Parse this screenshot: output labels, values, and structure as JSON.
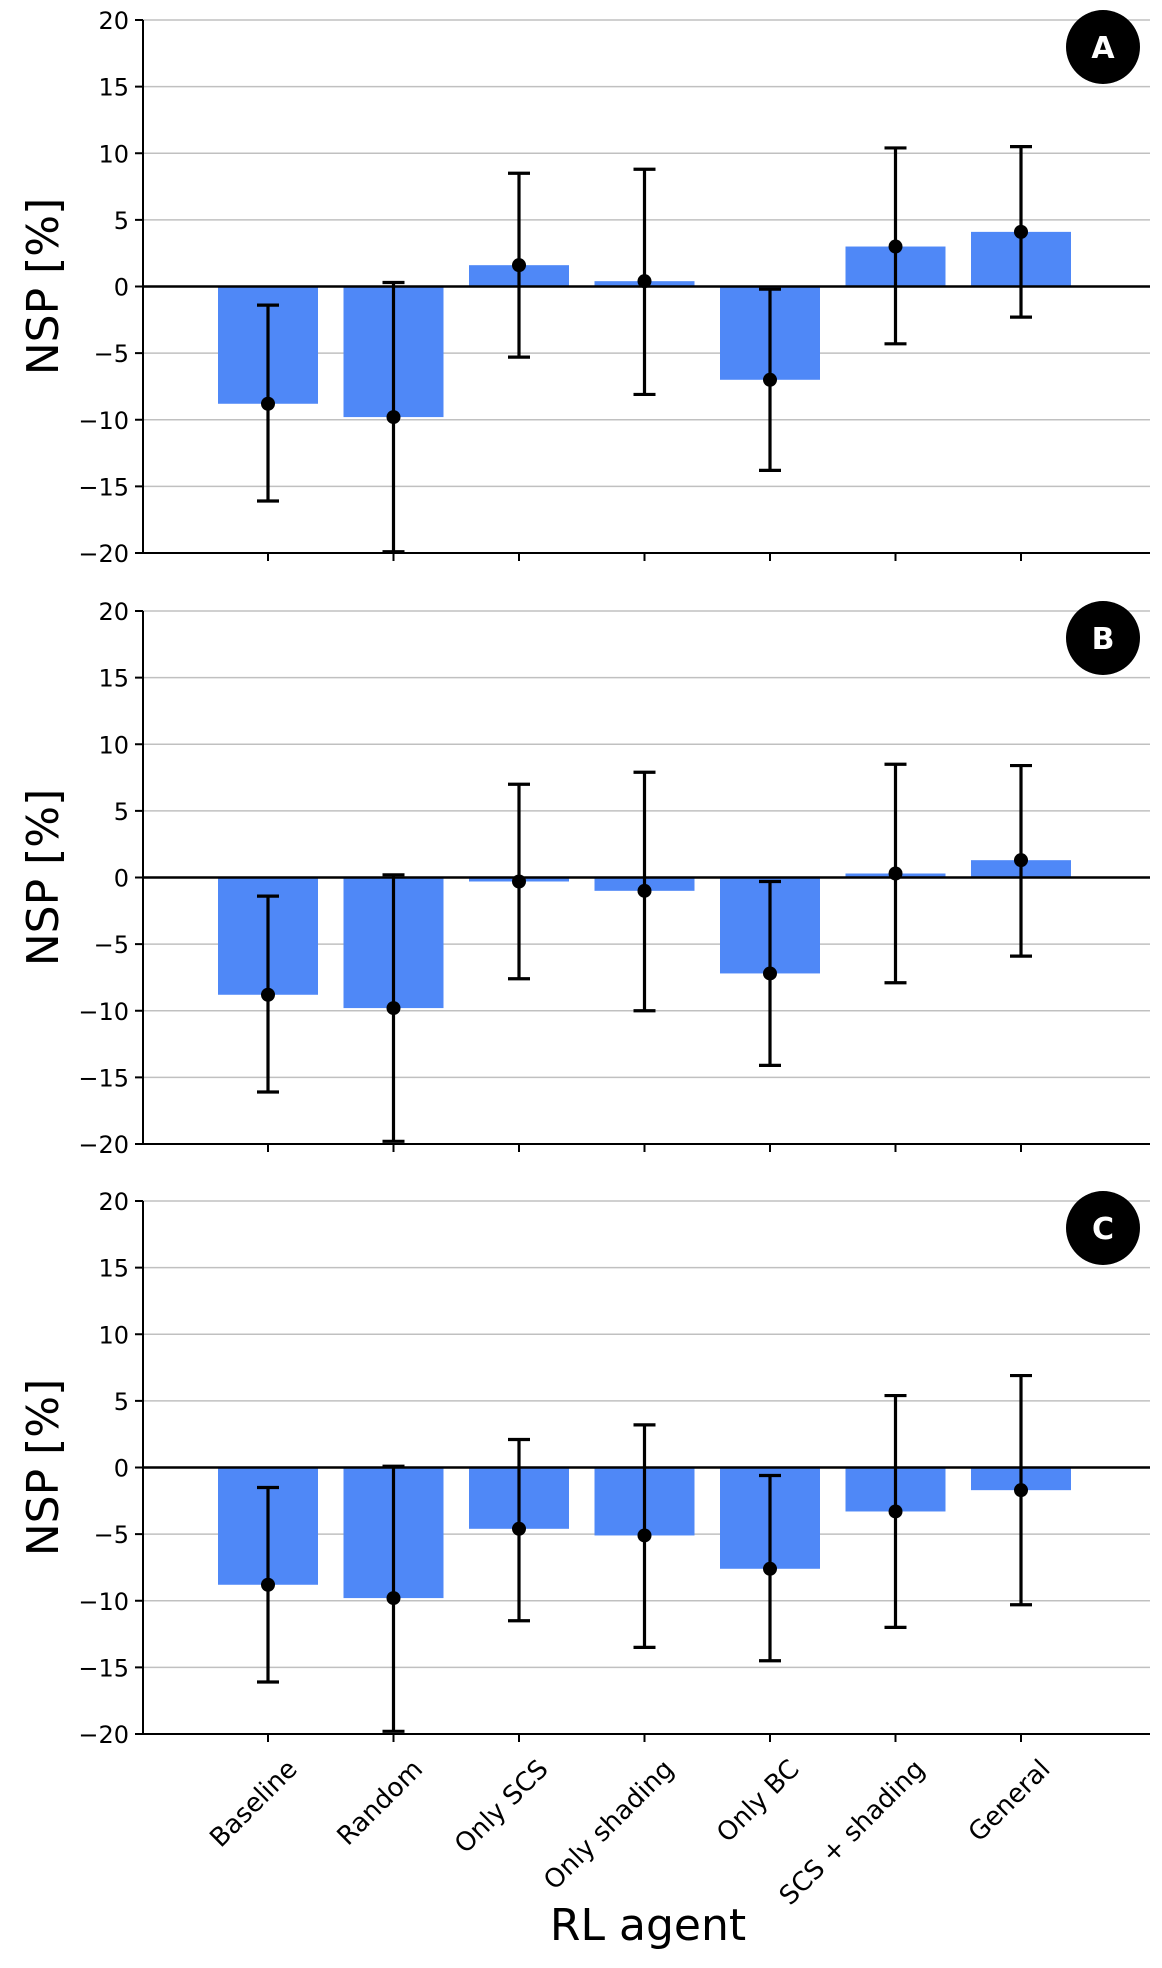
{
  "chart_data": [
    {
      "type": "bar",
      "panel_label": "A",
      "ylabel": "NSP [%]",
      "xlabel": "",
      "ylim": [
        -20,
        20
      ],
      "yticks": [
        "20",
        "15",
        "10",
        "5",
        "0",
        "−5",
        "−10",
        "−15",
        "−20"
      ],
      "grid": "horizontal",
      "categories": [
        "Baseline",
        "Random",
        "Only SCS",
        "Only shading",
        "Only BC",
        "SCS + shading",
        "General"
      ],
      "values": [
        -8.8,
        -9.8,
        1.6,
        0.4,
        -7.0,
        3.0,
        4.1
      ],
      "error_low": [
        -16.1,
        -19.9,
        -5.3,
        -8.1,
        -13.8,
        -4.3,
        -2.3
      ],
      "error_high": [
        -1.4,
        0.3,
        8.5,
        8.8,
        -0.2,
        10.4,
        10.5
      ],
      "bar_color": "#4f88f7"
    },
    {
      "type": "bar",
      "panel_label": "B",
      "ylabel": "NSP [%]",
      "xlabel": "",
      "ylim": [
        -20,
        20
      ],
      "yticks": [
        "20",
        "15",
        "10",
        "5",
        "0",
        "−5",
        "−10",
        "−15",
        "−20"
      ],
      "grid": "horizontal",
      "categories": [
        "Baseline",
        "Random",
        "Only SCS",
        "Only shading",
        "Only BC",
        "SCS + shading",
        "General"
      ],
      "values": [
        -8.8,
        -9.8,
        -0.3,
        -1.0,
        -7.2,
        0.3,
        1.3
      ],
      "error_low": [
        -16.1,
        -19.8,
        -7.6,
        -10.0,
        -14.1,
        -7.9,
        -5.9
      ],
      "error_high": [
        -1.4,
        0.2,
        7.0,
        7.9,
        -0.3,
        8.5,
        8.4
      ],
      "bar_color": "#4f88f7"
    },
    {
      "type": "bar",
      "panel_label": "C",
      "ylabel": "NSP [%]",
      "xlabel": "RL agent",
      "ylim": [
        -20,
        20
      ],
      "yticks": [
        "20",
        "15",
        "10",
        "5",
        "0",
        "−5",
        "−10",
        "−15",
        "−20"
      ],
      "grid": "horizontal",
      "categories": [
        "Baseline",
        "Random",
        "Only SCS",
        "Only shading",
        "Only BC",
        "SCS + shading",
        "General"
      ],
      "values": [
        -8.8,
        -9.8,
        -4.6,
        -5.1,
        -7.6,
        -3.3,
        -1.7
      ],
      "error_low": [
        -16.1,
        -19.8,
        -11.5,
        -13.5,
        -14.5,
        -12.0,
        -10.3
      ],
      "error_high": [
        -1.5,
        0.1,
        2.1,
        3.2,
        -0.6,
        5.4,
        6.9
      ],
      "bar_color": "#4f88f7"
    }
  ]
}
